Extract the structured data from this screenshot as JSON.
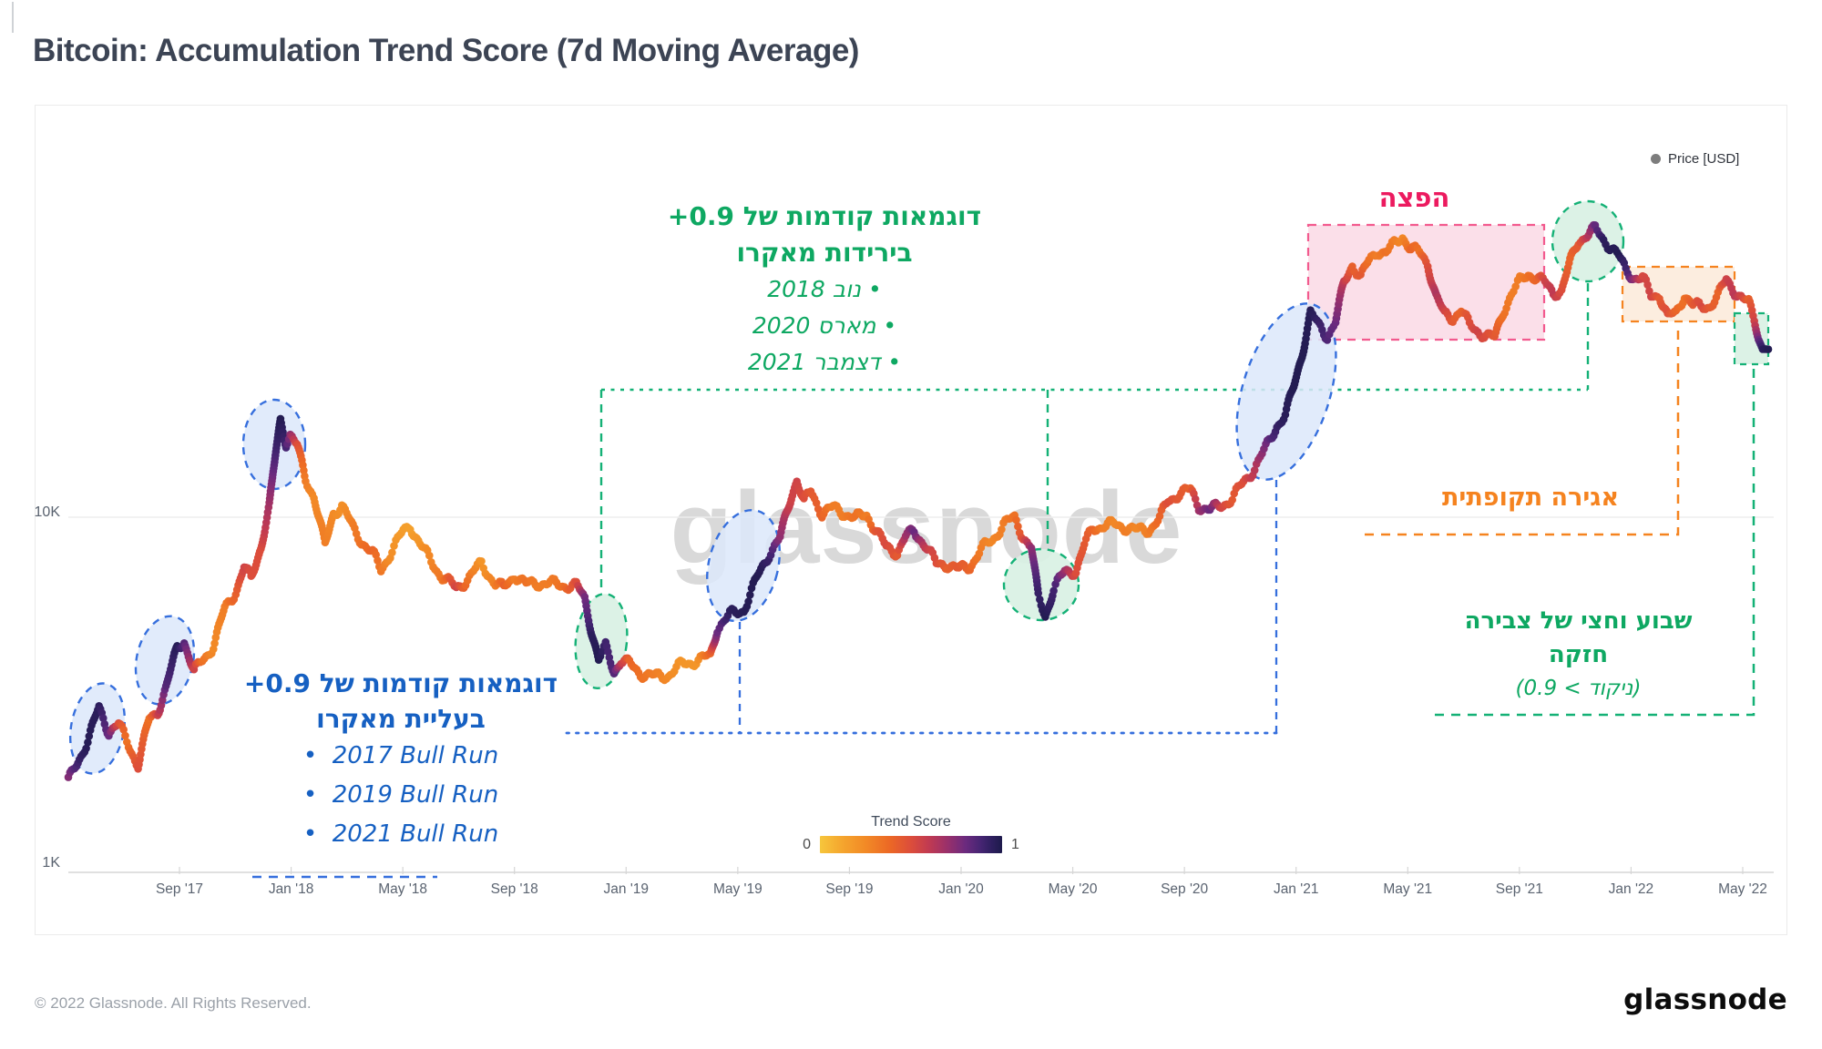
{
  "title": "Bitcoin: Accumulation Trend Score (7d Moving Average)",
  "legend": {
    "price_label": "Price [USD]",
    "marker_color": "#7d7d7d"
  },
  "watermark": "glassnode",
  "trend_legend": {
    "label": "Trend Score",
    "min": "0",
    "max": "1"
  },
  "footer": {
    "copyright": "© 2022 Glassnode. All Rights Reserved.",
    "logo": "glassnode"
  },
  "colors": {
    "green_text": "#0ea862",
    "green_line": "#14b176",
    "green_fill": "#d8f1e3",
    "blue_text": "#1660c2",
    "blue_line": "#366fdd",
    "blue_fill": "#dce7fa",
    "pink_text": "#ec1a5f",
    "pink_line": "#f25a8e",
    "pink_fill": "#fad7e3",
    "orange_text": "#f5831f",
    "orange_fill": "#fcead9",
    "axis_text": "#5a6370",
    "grid": "#ededed"
  },
  "annotations": {
    "green_top": {
      "line1": "דוגמאות קודמות של ‎+0.9",
      "line2": "בירידות מאקרו",
      "items": [
        "נוב 2018",
        "מארס 2020",
        "דצמבר 2021"
      ]
    },
    "distribution": {
      "label": "הפצה"
    },
    "periodic": {
      "label": "אגירה תקופתית"
    },
    "strong": {
      "line1": "שבוע וחצי של צבירה",
      "line2": "חזקה",
      "line3": "(ניקוד > 0.9)"
    },
    "blue": {
      "line1": "דוגמאות קודמות של ‎+0.9",
      "line2": "בעליית מאקרו",
      "items": [
        "2017 Bull Run",
        "2019 Bull Run",
        "2021 Bull Run"
      ]
    }
  },
  "chart_data": {
    "type": "line",
    "title": "Bitcoin: Accumulation Trend Score (7d Moving Average)",
    "series_name": "BTC Price [USD], colored by Accumulation Trend Score (0=yellow, 1=dark navy)",
    "y_scale": "log",
    "ylim": [
      1000,
      120000
    ],
    "y_ticks": [
      "10K",
      "1K"
    ],
    "x_ticks": [
      "Sep '17",
      "Jan '18",
      "May '18",
      "Sep '18",
      "Jan '19",
      "May '19",
      "Sep '19",
      "Jan '20",
      "May '20",
      "Sep '20",
      "Jan '21",
      "May '21",
      "Sep '21",
      "Jan '22",
      "May '22"
    ],
    "x_start_month": "May 2017",
    "legend_position": "top-right",
    "grid": "horizontal-only",
    "colormap_stops": [
      {
        "t": 0.0,
        "c": "#F6C63C"
      },
      {
        "t": 0.12,
        "c": "#F5A62E"
      },
      {
        "t": 0.25,
        "c": "#F28A26"
      },
      {
        "t": 0.38,
        "c": "#EC6925"
      },
      {
        "t": 0.5,
        "c": "#DC4D3B"
      },
      {
        "t": 0.6,
        "c": "#C03A52"
      },
      {
        "t": 0.7,
        "c": "#99306B"
      },
      {
        "t": 0.8,
        "c": "#6B2A7E"
      },
      {
        "t": 0.88,
        "c": "#472573"
      },
      {
        "t": 0.94,
        "c": "#2F1F60"
      },
      {
        "t": 1.0,
        "c": "#1D1A4B"
      }
    ],
    "points_format": [
      "months_since_2017_05",
      "price_usd",
      "trend_score"
    ],
    "points": [
      [
        0.0,
        1800,
        0.75
      ],
      [
        0.4,
        2100,
        0.92
      ],
      [
        0.7,
        2350,
        0.97
      ],
      [
        1.1,
        2900,
        0.95
      ],
      [
        1.45,
        2500,
        0.8
      ],
      [
        1.8,
        2600,
        0.5
      ],
      [
        2.1,
        2350,
        0.35
      ],
      [
        2.5,
        2000,
        0.5
      ],
      [
        2.9,
        2700,
        0.35
      ],
      [
        3.2,
        2850,
        0.55
      ],
      [
        3.5,
        3300,
        0.85
      ],
      [
        3.9,
        4300,
        0.97
      ],
      [
        4.15,
        4500,
        0.85
      ],
      [
        4.5,
        3650,
        0.55
      ],
      [
        4.8,
        3950,
        0.35
      ],
      [
        5.2,
        4350,
        0.25
      ],
      [
        5.6,
        5500,
        0.3
      ],
      [
        6.0,
        6200,
        0.42
      ],
      [
        6.3,
        7200,
        0.55
      ],
      [
        6.55,
        6700,
        0.5
      ],
      [
        6.9,
        8300,
        0.5
      ],
      [
        7.2,
        10700,
        0.68
      ],
      [
        7.45,
        15500,
        0.9
      ],
      [
        7.6,
        18800,
        0.98
      ],
      [
        7.8,
        16300,
        0.88
      ],
      [
        7.95,
        17100,
        0.72
      ],
      [
        8.2,
        15800,
        0.5
      ],
      [
        8.5,
        12800,
        0.3
      ],
      [
        8.8,
        11500,
        0.25
      ],
      [
        9.2,
        8300,
        0.3
      ],
      [
        9.5,
        10300,
        0.25
      ],
      [
        9.8,
        10800,
        0.22
      ],
      [
        10.2,
        9300,
        0.3
      ],
      [
        10.5,
        8600,
        0.35
      ],
      [
        10.9,
        7900,
        0.4
      ],
      [
        11.2,
        7100,
        0.32
      ],
      [
        11.6,
        8100,
        0.22
      ],
      [
        12.0,
        9100,
        0.16
      ],
      [
        12.25,
        9500,
        0.15
      ],
      [
        12.6,
        8400,
        0.2
      ],
      [
        13.0,
        7500,
        0.27
      ],
      [
        13.4,
        6800,
        0.33
      ],
      [
        13.9,
        6300,
        0.55
      ],
      [
        14.3,
        6700,
        0.35
      ],
      [
        14.8,
        7400,
        0.2
      ],
      [
        15.3,
        6500,
        0.3
      ],
      [
        15.6,
        6300,
        0.42
      ],
      [
        16.0,
        6900,
        0.3
      ],
      [
        16.4,
        6450,
        0.35
      ],
      [
        16.8,
        6550,
        0.3
      ],
      [
        17.2,
        6500,
        0.3
      ],
      [
        17.7,
        6450,
        0.35
      ],
      [
        18.2,
        6400,
        0.5
      ],
      [
        18.5,
        5900,
        0.78
      ],
      [
        18.75,
        4800,
        0.95
      ],
      [
        19.0,
        3950,
        0.98
      ],
      [
        19.25,
        4300,
        0.9
      ],
      [
        19.55,
        3700,
        0.85
      ],
      [
        19.8,
        3950,
        0.6
      ],
      [
        20.1,
        3850,
        0.4
      ],
      [
        20.5,
        3650,
        0.35
      ],
      [
        21.0,
        3550,
        0.3
      ],
      [
        21.5,
        3600,
        0.25
      ],
      [
        22.0,
        3850,
        0.2
      ],
      [
        22.5,
        3950,
        0.2
      ],
      [
        23.0,
        4050,
        0.4
      ],
      [
        23.25,
        4900,
        0.8
      ],
      [
        23.7,
        5300,
        0.95
      ],
      [
        24.2,
        5500,
        0.97
      ],
      [
        24.7,
        6800,
        0.98
      ],
      [
        25.1,
        7900,
        0.92
      ],
      [
        25.5,
        8700,
        0.72
      ],
      [
        25.9,
        11500,
        0.55
      ],
      [
        26.1,
        12800,
        0.55
      ],
      [
        26.35,
        11000,
        0.5
      ],
      [
        26.6,
        11800,
        0.45
      ],
      [
        27.0,
        10300,
        0.4
      ],
      [
        27.4,
        10600,
        0.3
      ],
      [
        27.8,
        10300,
        0.3
      ],
      [
        28.2,
        9900,
        0.35
      ],
      [
        28.6,
        10200,
        0.3
      ],
      [
        28.9,
        9300,
        0.45
      ],
      [
        29.3,
        8200,
        0.52
      ],
      [
        29.7,
        8000,
        0.45
      ],
      [
        30.0,
        8800,
        0.68
      ],
      [
        30.3,
        9100,
        0.8
      ],
      [
        30.7,
        8400,
        0.6
      ],
      [
        31.1,
        7350,
        0.5
      ],
      [
        31.5,
        7400,
        0.42
      ],
      [
        31.9,
        7100,
        0.45
      ],
      [
        32.3,
        7300,
        0.4
      ],
      [
        32.7,
        8100,
        0.3
      ],
      [
        33.1,
        8600,
        0.26
      ],
      [
        33.5,
        9600,
        0.3
      ],
      [
        33.9,
        9900,
        0.35
      ],
      [
        34.2,
        8900,
        0.5
      ],
      [
        34.5,
        8200,
        0.72
      ],
      [
        34.75,
        5950,
        0.92
      ],
      [
        35.0,
        5300,
        0.98
      ],
      [
        35.3,
        6300,
        0.9
      ],
      [
        35.7,
        7000,
        0.7
      ],
      [
        36.1,
        7100,
        0.5
      ],
      [
        36.4,
        8300,
        0.45
      ],
      [
        36.7,
        9300,
        0.4
      ],
      [
        37.1,
        9500,
        0.3
      ],
      [
        37.5,
        9500,
        0.26
      ],
      [
        37.9,
        9400,
        0.3
      ],
      [
        38.3,
        9150,
        0.26
      ],
      [
        38.7,
        9250,
        0.3
      ],
      [
        39.1,
        9900,
        0.4
      ],
      [
        39.4,
        11100,
        0.5
      ],
      [
        39.8,
        11700,
        0.45
      ],
      [
        40.2,
        11900,
        0.42
      ],
      [
        40.5,
        10800,
        0.68
      ],
      [
        40.9,
        10450,
        0.8
      ],
      [
        41.3,
        10800,
        0.55
      ],
      [
        41.7,
        11300,
        0.45
      ],
      [
        42.1,
        12500,
        0.5
      ],
      [
        42.5,
        13800,
        0.62
      ],
      [
        42.9,
        15600,
        0.78
      ],
      [
        43.3,
        18200,
        0.92
      ],
      [
        43.6,
        19300,
        0.96
      ],
      [
        43.9,
        23200,
        0.98
      ],
      [
        44.2,
        29000,
        0.98
      ],
      [
        44.5,
        37500,
        0.97
      ],
      [
        44.8,
        34500,
        0.92
      ],
      [
        45.1,
        32500,
        0.86
      ],
      [
        45.4,
        35500,
        0.8
      ],
      [
        45.7,
        45500,
        0.6
      ],
      [
        46.0,
        51500,
        0.42
      ],
      [
        46.3,
        47500,
        0.45
      ],
      [
        46.6,
        52500,
        0.35
      ],
      [
        46.9,
        56500,
        0.3
      ],
      [
        47.2,
        55500,
        0.35
      ],
      [
        47.5,
        58500,
        0.3
      ],
      [
        47.8,
        62000,
        0.26
      ],
      [
        48.1,
        57000,
        0.4
      ],
      [
        48.4,
        55500,
        0.35
      ],
      [
        48.7,
        52000,
        0.5
      ],
      [
        49.0,
        42000,
        0.65
      ],
      [
        49.3,
        37000,
        0.55
      ],
      [
        49.6,
        36500,
        0.45
      ],
      [
        49.9,
        38500,
        0.4
      ],
      [
        50.2,
        34500,
        0.5
      ],
      [
        50.5,
        33500,
        0.55
      ],
      [
        50.8,
        32500,
        0.5
      ],
      [
        51.1,
        31800,
        0.45
      ],
      [
        51.4,
        38000,
        0.35
      ],
      [
        51.7,
        42500,
        0.3
      ],
      [
        52.0,
        46000,
        0.3
      ],
      [
        52.3,
        48500,
        0.35
      ],
      [
        52.6,
        47500,
        0.4
      ],
      [
        52.9,
        45500,
        0.55
      ],
      [
        53.2,
        43000,
        0.6
      ],
      [
        53.5,
        43500,
        0.5
      ],
      [
        53.8,
        52000,
        0.4
      ],
      [
        54.1,
        60000,
        0.45
      ],
      [
        54.4,
        62500,
        0.6
      ],
      [
        54.7,
        64500,
        0.82
      ],
      [
        55.0,
        60500,
        0.95
      ],
      [
        55.3,
        57500,
        0.97
      ],
      [
        55.55,
        54000,
        0.98
      ],
      [
        55.8,
        49500,
        0.9
      ],
      [
        56.1,
        47500,
        0.72
      ],
      [
        56.4,
        47000,
        0.52
      ],
      [
        56.7,
        42000,
        0.55
      ],
      [
        57.0,
        42500,
        0.45
      ],
      [
        57.3,
        36500,
        0.5
      ],
      [
        57.6,
        37500,
        0.4
      ],
      [
        57.9,
        42500,
        0.35
      ],
      [
        58.2,
        39500,
        0.45
      ],
      [
        58.5,
        39000,
        0.52
      ],
      [
        58.8,
        39500,
        0.45
      ],
      [
        59.1,
        42000,
        0.4
      ],
      [
        59.4,
        46500,
        0.55
      ],
      [
        59.7,
        43500,
        0.62
      ],
      [
        60.0,
        41000,
        0.52
      ],
      [
        60.2,
        40000,
        0.42
      ],
      [
        60.4,
        36000,
        0.55
      ],
      [
        60.55,
        32000,
        0.8
      ],
      [
        60.7,
        29800,
        0.95
      ],
      [
        60.9,
        29700,
        0.98
      ]
    ]
  }
}
